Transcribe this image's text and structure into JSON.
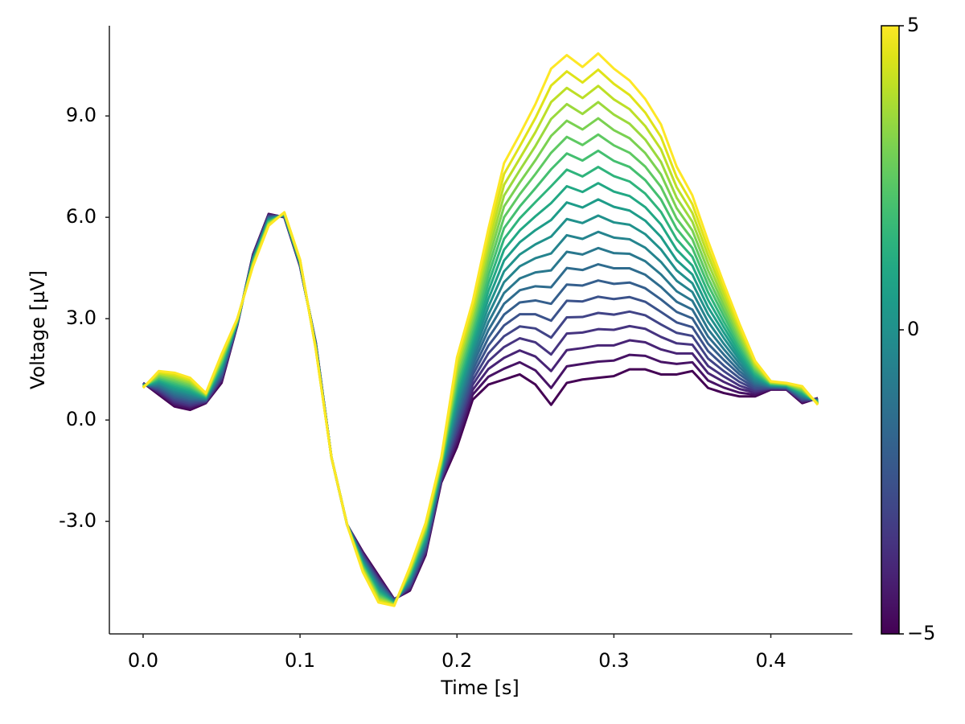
{
  "chart_data": {
    "type": "line",
    "xlabel": "Time [s]",
    "ylabel": "Voltage [µV]",
    "x": [
      0,
      0.01,
      0.02,
      0.03,
      0.04,
      0.05,
      0.06,
      0.07,
      0.08,
      0.09,
      0.1,
      0.11,
      0.12,
      0.13,
      0.14,
      0.15,
      0.16,
      0.17,
      0.18,
      0.19,
      0.2,
      0.21,
      0.22,
      0.23,
      0.24,
      0.25,
      0.26,
      0.27,
      0.28,
      0.29,
      0.3,
      0.31,
      0.32,
      0.33,
      0.34,
      0.35,
      0.36,
      0.37,
      0.38,
      0.39,
      0.4,
      0.41,
      0.42,
      0.43
    ],
    "xlim": [
      -0.0215,
      0.452
    ],
    "xticks": [
      {
        "value": 0,
        "label": "0.0"
      },
      0.1,
      0.2,
      0.3,
      0.4
    ],
    "ylim": [
      -6.33,
      11.67
    ],
    "yticks": [
      {
        "value": -3,
        "label": "-3.0"
      },
      {
        "value": 0,
        "label": "0.0"
      },
      {
        "value": 3,
        "label": "3.0"
      },
      {
        "value": 6,
        "label": "6.0"
      },
      {
        "value": 9,
        "label": "9.0"
      }
    ],
    "colorbar": {
      "lim": [
        -5,
        5
      ],
      "ticks": [
        {
          "value": -5,
          "label": "−5"
        },
        0,
        5
      ]
    },
    "series": [
      {
        "color": "#440154",
        "values": [
          1.1,
          0.75,
          0.4,
          0.3,
          0.5,
          1.1,
          2.8,
          4.9,
          6.1,
          6.0,
          4.55,
          2.3,
          -1.1,
          -3.1,
          -3.9,
          -4.6,
          -5.3,
          -5.05,
          -4.0,
          -1.85,
          -0.8,
          0.6,
          1.05,
          1.2,
          1.35,
          1.05,
          0.45,
          1.1,
          1.2,
          1.25,
          1.3,
          1.5,
          1.5,
          1.35,
          1.35,
          1.45,
          0.95,
          0.8,
          0.7,
          0.7,
          0.9,
          0.9,
          0.5,
          0.65
        ]
      },
      {
        "color": "#471365",
        "values": [
          1.09,
          0.79,
          0.45,
          0.35,
          0.52,
          1.14,
          2.81,
          4.88,
          6.08,
          6.01,
          4.56,
          2.29,
          -1.1,
          -3.1,
          -3.93,
          -4.64,
          -5.31,
          -5.02,
          -3.95,
          -1.81,
          -0.67,
          0.75,
          1.28,
          1.52,
          1.71,
          1.47,
          0.95,
          1.59,
          1.66,
          1.73,
          1.76,
          1.93,
          1.9,
          1.72,
          1.66,
          1.71,
          1.17,
          0.96,
          0.81,
          0.75,
          0.91,
          0.91,
          0.53,
          0.64
        ]
      },
      {
        "color": "#482475",
        "values": [
          1.09,
          0.82,
          0.5,
          0.4,
          0.53,
          1.19,
          2.82,
          4.87,
          6.07,
          6.02,
          4.57,
          2.28,
          -1.1,
          -3.1,
          -3.96,
          -4.68,
          -5.32,
          -4.98,
          -3.91,
          -1.78,
          -0.54,
          0.89,
          1.51,
          1.84,
          2.06,
          1.88,
          1.45,
          2.07,
          2.13,
          2.21,
          2.21,
          2.36,
          2.3,
          2.09,
          1.97,
          1.97,
          1.39,
          1.13,
          0.92,
          0.81,
          0.93,
          0.92,
          0.55,
          0.63
        ]
      },
      {
        "color": "#463480",
        "values": [
          1.08,
          0.86,
          0.55,
          0.44,
          0.55,
          1.23,
          2.83,
          4.85,
          6.05,
          6.02,
          4.58,
          2.27,
          -1.1,
          -3.1,
          -3.99,
          -4.72,
          -5.33,
          -4.95,
          -3.86,
          -1.74,
          -0.4,
          1.04,
          1.74,
          2.16,
          2.42,
          2.3,
          1.94,
          2.56,
          2.59,
          2.69,
          2.67,
          2.78,
          2.7,
          2.46,
          2.27,
          2.23,
          1.6,
          1.29,
          1.02,
          0.86,
          0.94,
          0.93,
          0.58,
          0.62
        ]
      },
      {
        "color": "#414487",
        "values": [
          1.07,
          0.89,
          0.6,
          0.49,
          0.56,
          1.27,
          2.84,
          4.83,
          6.03,
          6.03,
          4.59,
          2.26,
          -1.1,
          -3.1,
          -4.02,
          -4.76,
          -5.34,
          -4.91,
          -3.81,
          -1.7,
          -0.27,
          1.18,
          1.97,
          2.48,
          2.77,
          2.71,
          2.44,
          3.04,
          3.05,
          3.17,
          3.12,
          3.21,
          3.1,
          2.83,
          2.58,
          2.49,
          1.82,
          1.45,
          1.13,
          0.91,
          0.95,
          0.94,
          0.6,
          0.61
        ]
      },
      {
        "color": "#3b528b",
        "values": [
          1.06,
          0.93,
          0.65,
          0.54,
          0.58,
          1.31,
          2.85,
          4.81,
          6.01,
          6.04,
          4.6,
          2.25,
          -1.1,
          -3.1,
          -4.05,
          -4.8,
          -5.35,
          -4.88,
          -3.76,
          -1.66,
          -0.14,
          1.33,
          2.2,
          2.8,
          3.13,
          3.13,
          2.94,
          3.53,
          3.51,
          3.65,
          3.58,
          3.64,
          3.5,
          3.2,
          2.89,
          2.75,
          2.04,
          1.61,
          1.24,
          0.96,
          0.96,
          0.95,
          0.63,
          0.6
        ]
      },
      {
        "color": "#355f8d",
        "values": [
          1.06,
          0.96,
          0.7,
          0.59,
          0.59,
          1.36,
          2.86,
          4.8,
          6.0,
          6.05,
          4.61,
          2.24,
          -1.1,
          -3.1,
          -4.08,
          -4.84,
          -5.36,
          -4.84,
          -3.72,
          -1.63,
          -0.01,
          1.47,
          2.43,
          3.12,
          3.48,
          3.54,
          3.44,
          4.01,
          3.98,
          4.13,
          4.03,
          4.07,
          3.9,
          3.57,
          3.2,
          3.01,
          2.26,
          1.78,
          1.35,
          1.02,
          0.98,
          0.96,
          0.65,
          0.59
        ]
      },
      {
        "color": "#2f6c8e",
        "values": [
          1.05,
          1.0,
          0.75,
          0.63,
          0.61,
          1.4,
          2.87,
          4.78,
          5.98,
          6.05,
          4.62,
          2.23,
          -1.1,
          -3.1,
          -4.11,
          -4.88,
          -5.37,
          -4.81,
          -3.67,
          -1.59,
          0.13,
          1.62,
          2.66,
          3.44,
          3.84,
          3.96,
          3.93,
          4.5,
          4.44,
          4.61,
          4.49,
          4.49,
          4.3,
          3.94,
          3.5,
          3.27,
          2.47,
          1.94,
          1.45,
          1.07,
          0.99,
          0.97,
          0.68,
          0.58
        ]
      },
      {
        "color": "#2a788e",
        "values": [
          1.04,
          1.03,
          0.8,
          0.68,
          0.62,
          1.44,
          2.88,
          4.76,
          5.96,
          6.06,
          4.63,
          2.22,
          -1.1,
          -3.1,
          -4.14,
          -4.92,
          -5.38,
          -4.77,
          -3.62,
          -1.55,
          0.26,
          1.76,
          2.89,
          3.76,
          4.19,
          4.37,
          4.43,
          4.98,
          4.9,
          5.09,
          4.94,
          4.92,
          4.7,
          4.31,
          3.81,
          3.53,
          2.69,
          2.1,
          1.56,
          1.12,
          1.0,
          0.98,
          0.7,
          0.57
        ]
      },
      {
        "color": "#25848e",
        "values": [
          1.03,
          1.07,
          0.85,
          0.73,
          0.64,
          1.48,
          2.89,
          4.74,
          5.94,
          6.07,
          4.64,
          2.21,
          -1.1,
          -3.1,
          -4.17,
          -4.96,
          -5.39,
          -4.74,
          -3.57,
          -1.51,
          0.39,
          1.91,
          3.12,
          4.08,
          4.55,
          4.79,
          4.93,
          5.47,
          5.36,
          5.57,
          5.4,
          5.35,
          5.1,
          4.68,
          4.12,
          3.79,
          2.91,
          2.26,
          1.67,
          1.17,
          1.01,
          0.99,
          0.73,
          0.56
        ]
      },
      {
        "color": "#21918c",
        "values": [
          1.03,
          1.1,
          0.9,
          0.78,
          0.65,
          1.53,
          2.9,
          4.73,
          5.93,
          6.08,
          4.65,
          2.2,
          -1.1,
          -3.1,
          -4.2,
          -5.0,
          -5.4,
          -4.7,
          -3.53,
          -1.48,
          0.53,
          2.05,
          3.35,
          4.4,
          4.9,
          5.2,
          5.43,
          5.95,
          5.83,
          6.05,
          5.85,
          5.78,
          5.5,
          5.05,
          4.43,
          4.05,
          3.13,
          2.43,
          1.78,
          1.23,
          1.03,
          1.0,
          0.75,
          0.55
        ]
      },
      {
        "color": "#1e9c89",
        "values": [
          1.02,
          1.14,
          0.95,
          0.82,
          0.67,
          1.57,
          2.91,
          4.71,
          5.91,
          6.08,
          4.66,
          2.19,
          -1.1,
          -3.1,
          -4.23,
          -5.04,
          -5.41,
          -4.67,
          -3.48,
          -1.44,
          0.66,
          2.2,
          3.58,
          4.72,
          5.26,
          5.62,
          5.92,
          6.44,
          6.29,
          6.53,
          6.31,
          6.2,
          5.9,
          5.42,
          4.73,
          4.31,
          3.34,
          2.59,
          1.88,
          1.28,
          1.04,
          1.01,
          0.78,
          0.54
        ]
      },
      {
        "color": "#22a884",
        "values": [
          1.01,
          1.17,
          1.0,
          0.87,
          0.68,
          1.61,
          2.92,
          4.69,
          5.89,
          6.09,
          4.67,
          2.18,
          -1.1,
          -3.1,
          -4.26,
          -5.08,
          -5.42,
          -4.63,
          -3.43,
          -1.4,
          0.79,
          2.34,
          3.81,
          5.04,
          5.61,
          6.03,
          6.42,
          6.92,
          6.75,
          7.01,
          6.76,
          6.63,
          6.3,
          5.79,
          5.04,
          4.57,
          3.56,
          2.75,
          1.99,
          1.33,
          1.05,
          1.02,
          0.8,
          0.53
        ]
      },
      {
        "color": "#2fb47c",
        "values": [
          1.0,
          1.21,
          1.05,
          0.92,
          0.7,
          1.65,
          2.93,
          4.67,
          5.87,
          6.1,
          4.68,
          2.17,
          -1.1,
          -3.1,
          -4.29,
          -5.12,
          -5.43,
          -4.6,
          -3.38,
          -1.36,
          0.92,
          2.49,
          4.04,
          5.36,
          5.97,
          6.45,
          6.92,
          7.41,
          7.21,
          7.49,
          7.22,
          7.06,
          6.7,
          6.16,
          5.35,
          4.83,
          3.78,
          2.91,
          2.1,
          1.38,
          1.06,
          1.03,
          0.83,
          0.52
        ]
      },
      {
        "color": "#44bf70",
        "values": [
          1.0,
          1.24,
          1.1,
          0.97,
          0.71,
          1.7,
          2.94,
          4.66,
          5.86,
          6.11,
          4.69,
          2.16,
          -1.1,
          -3.1,
          -4.32,
          -5.16,
          -5.44,
          -4.56,
          -3.34,
          -1.33,
          1.06,
          2.63,
          4.27,
          5.68,
          6.32,
          6.86,
          7.42,
          7.89,
          7.68,
          7.97,
          7.67,
          7.49,
          7.1,
          6.53,
          5.66,
          5.09,
          4.0,
          3.08,
          2.21,
          1.44,
          1.08,
          1.04,
          0.85,
          0.51
        ]
      },
      {
        "color": "#5ec962",
        "values": [
          0.99,
          1.28,
          1.15,
          1.01,
          0.73,
          1.74,
          2.95,
          4.64,
          5.84,
          6.11,
          4.7,
          2.15,
          -1.1,
          -3.1,
          -4.35,
          -5.2,
          -5.45,
          -4.53,
          -3.29,
          -1.29,
          1.19,
          2.78,
          4.5,
          6.0,
          6.68,
          7.28,
          7.91,
          8.38,
          8.14,
          8.45,
          8.13,
          7.91,
          7.5,
          6.9,
          5.96,
          5.35,
          4.21,
          3.24,
          2.31,
          1.49,
          1.09,
          1.05,
          0.88,
          0.5
        ]
      },
      {
        "color": "#7ad151",
        "values": [
          0.98,
          1.31,
          1.2,
          1.06,
          0.74,
          1.78,
          2.96,
          4.62,
          5.82,
          6.12,
          4.71,
          2.14,
          -1.1,
          -3.1,
          -4.38,
          -5.24,
          -5.46,
          -4.49,
          -3.24,
          -1.25,
          1.32,
          2.92,
          4.73,
          6.32,
          7.03,
          7.69,
          8.41,
          8.86,
          8.6,
          8.93,
          8.58,
          8.34,
          7.9,
          7.27,
          6.27,
          5.61,
          4.43,
          3.4,
          2.42,
          1.54,
          1.1,
          1.06,
          0.9,
          0.49
        ]
      },
      {
        "color": "#9bd93c",
        "values": [
          0.97,
          1.35,
          1.25,
          1.11,
          0.76,
          1.82,
          2.97,
          4.6,
          5.8,
          6.13,
          4.72,
          2.13,
          -1.1,
          -3.1,
          -4.41,
          -5.28,
          -5.47,
          -4.46,
          -3.19,
          -1.21,
          1.45,
          3.07,
          4.96,
          6.64,
          7.39,
          8.11,
          8.91,
          9.35,
          9.06,
          9.41,
          9.04,
          8.77,
          8.3,
          7.64,
          6.58,
          5.87,
          4.65,
          3.56,
          2.53,
          1.59,
          1.11,
          1.07,
          0.93,
          0.48
        ]
      },
      {
        "color": "#bddf26",
        "values": [
          0.97,
          1.38,
          1.3,
          1.16,
          0.77,
          1.87,
          2.98,
          4.59,
          5.79,
          6.14,
          4.73,
          2.12,
          -1.1,
          -3.1,
          -4.44,
          -5.32,
          -5.48,
          -4.42,
          -3.15,
          -1.18,
          1.59,
          3.21,
          5.19,
          6.96,
          7.74,
          8.52,
          9.41,
          9.83,
          9.53,
          9.89,
          9.49,
          9.2,
          8.7,
          8.01,
          6.89,
          6.13,
          4.87,
          3.73,
          2.64,
          1.65,
          1.13,
          1.08,
          0.95,
          0.47
        ]
      },
      {
        "color": "#dfe318",
        "values": [
          0.96,
          1.42,
          1.35,
          1.2,
          0.79,
          1.91,
          2.99,
          4.57,
          5.77,
          6.14,
          4.74,
          2.11,
          -1.1,
          -3.1,
          -4.47,
          -5.36,
          -5.49,
          -4.39,
          -3.1,
          -1.14,
          1.72,
          3.36,
          5.42,
          7.28,
          8.1,
          8.94,
          9.9,
          10.32,
          9.99,
          10.37,
          9.95,
          9.62,
          9.1,
          8.38,
          7.19,
          6.39,
          5.08,
          3.89,
          2.74,
          1.7,
          1.14,
          1.09,
          0.98,
          0.46
        ]
      },
      {
        "color": "#fde725",
        "values": [
          0.95,
          1.45,
          1.4,
          1.25,
          0.8,
          1.95,
          3.0,
          4.55,
          5.75,
          6.15,
          4.75,
          2.1,
          -1.1,
          -3.1,
          -4.5,
          -5.4,
          -5.5,
          -4.35,
          -3.05,
          -1.1,
          1.85,
          3.5,
          5.65,
          7.6,
          8.45,
          9.35,
          10.4,
          10.8,
          10.45,
          10.85,
          10.4,
          10.05,
          9.5,
          8.75,
          7.5,
          6.65,
          5.3,
          4.05,
          2.85,
          1.75,
          1.15,
          1.1,
          1.0,
          0.45
        ]
      }
    ]
  }
}
